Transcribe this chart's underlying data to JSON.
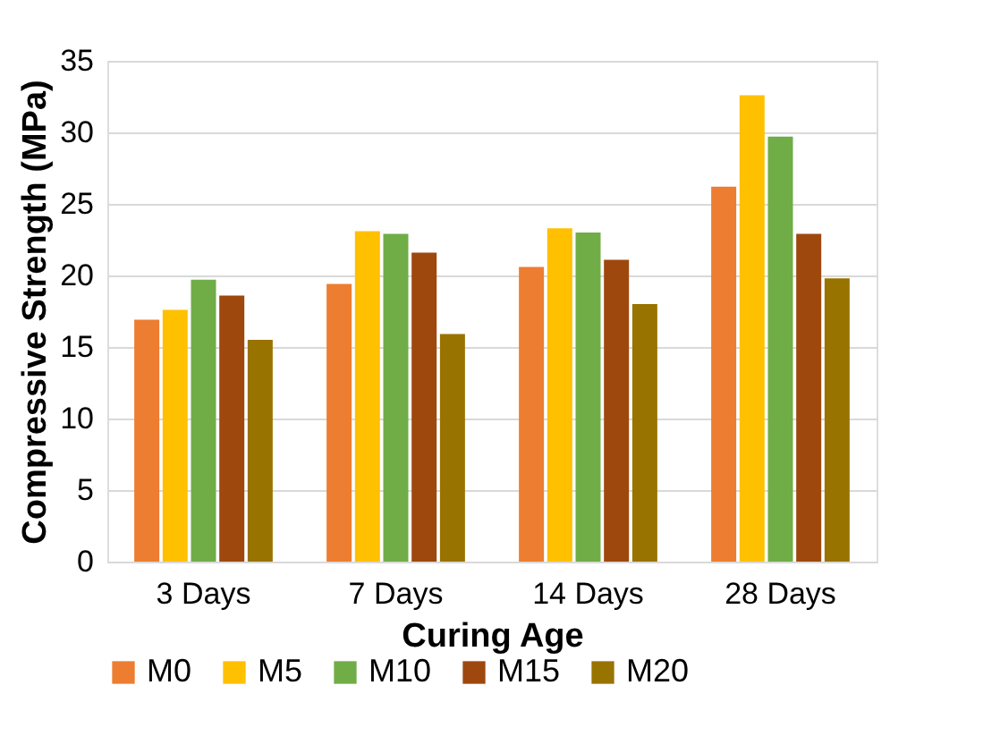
{
  "chart_data": {
    "type": "bar",
    "xlabel": "Curing Age",
    "ylabel": "Compressive Strength (MPa)",
    "categories": [
      "3 Days",
      "7 Days",
      "14 Days",
      "28 Days"
    ],
    "series": [
      {
        "name": "M0",
        "color": "#ed7d31",
        "values": [
          16.9,
          19.4,
          20.6,
          26.2
        ]
      },
      {
        "name": "M5",
        "color": "#ffc000",
        "values": [
          17.6,
          23.1,
          23.3,
          32.6
        ]
      },
      {
        "name": "M10",
        "color": "#70ad47",
        "values": [
          19.7,
          22.9,
          23.0,
          29.7
        ]
      },
      {
        "name": "M15",
        "color": "#9e480e",
        "values": [
          18.6,
          21.6,
          21.1,
          22.9
        ]
      },
      {
        "name": "M20",
        "color": "#997300",
        "values": [
          15.5,
          15.9,
          18.0,
          19.8
        ]
      }
    ],
    "ylim": [
      0,
      35
    ],
    "yticks": [
      0,
      5,
      10,
      15,
      20,
      25,
      30,
      35
    ],
    "grid": "y",
    "legend": "bottom"
  }
}
